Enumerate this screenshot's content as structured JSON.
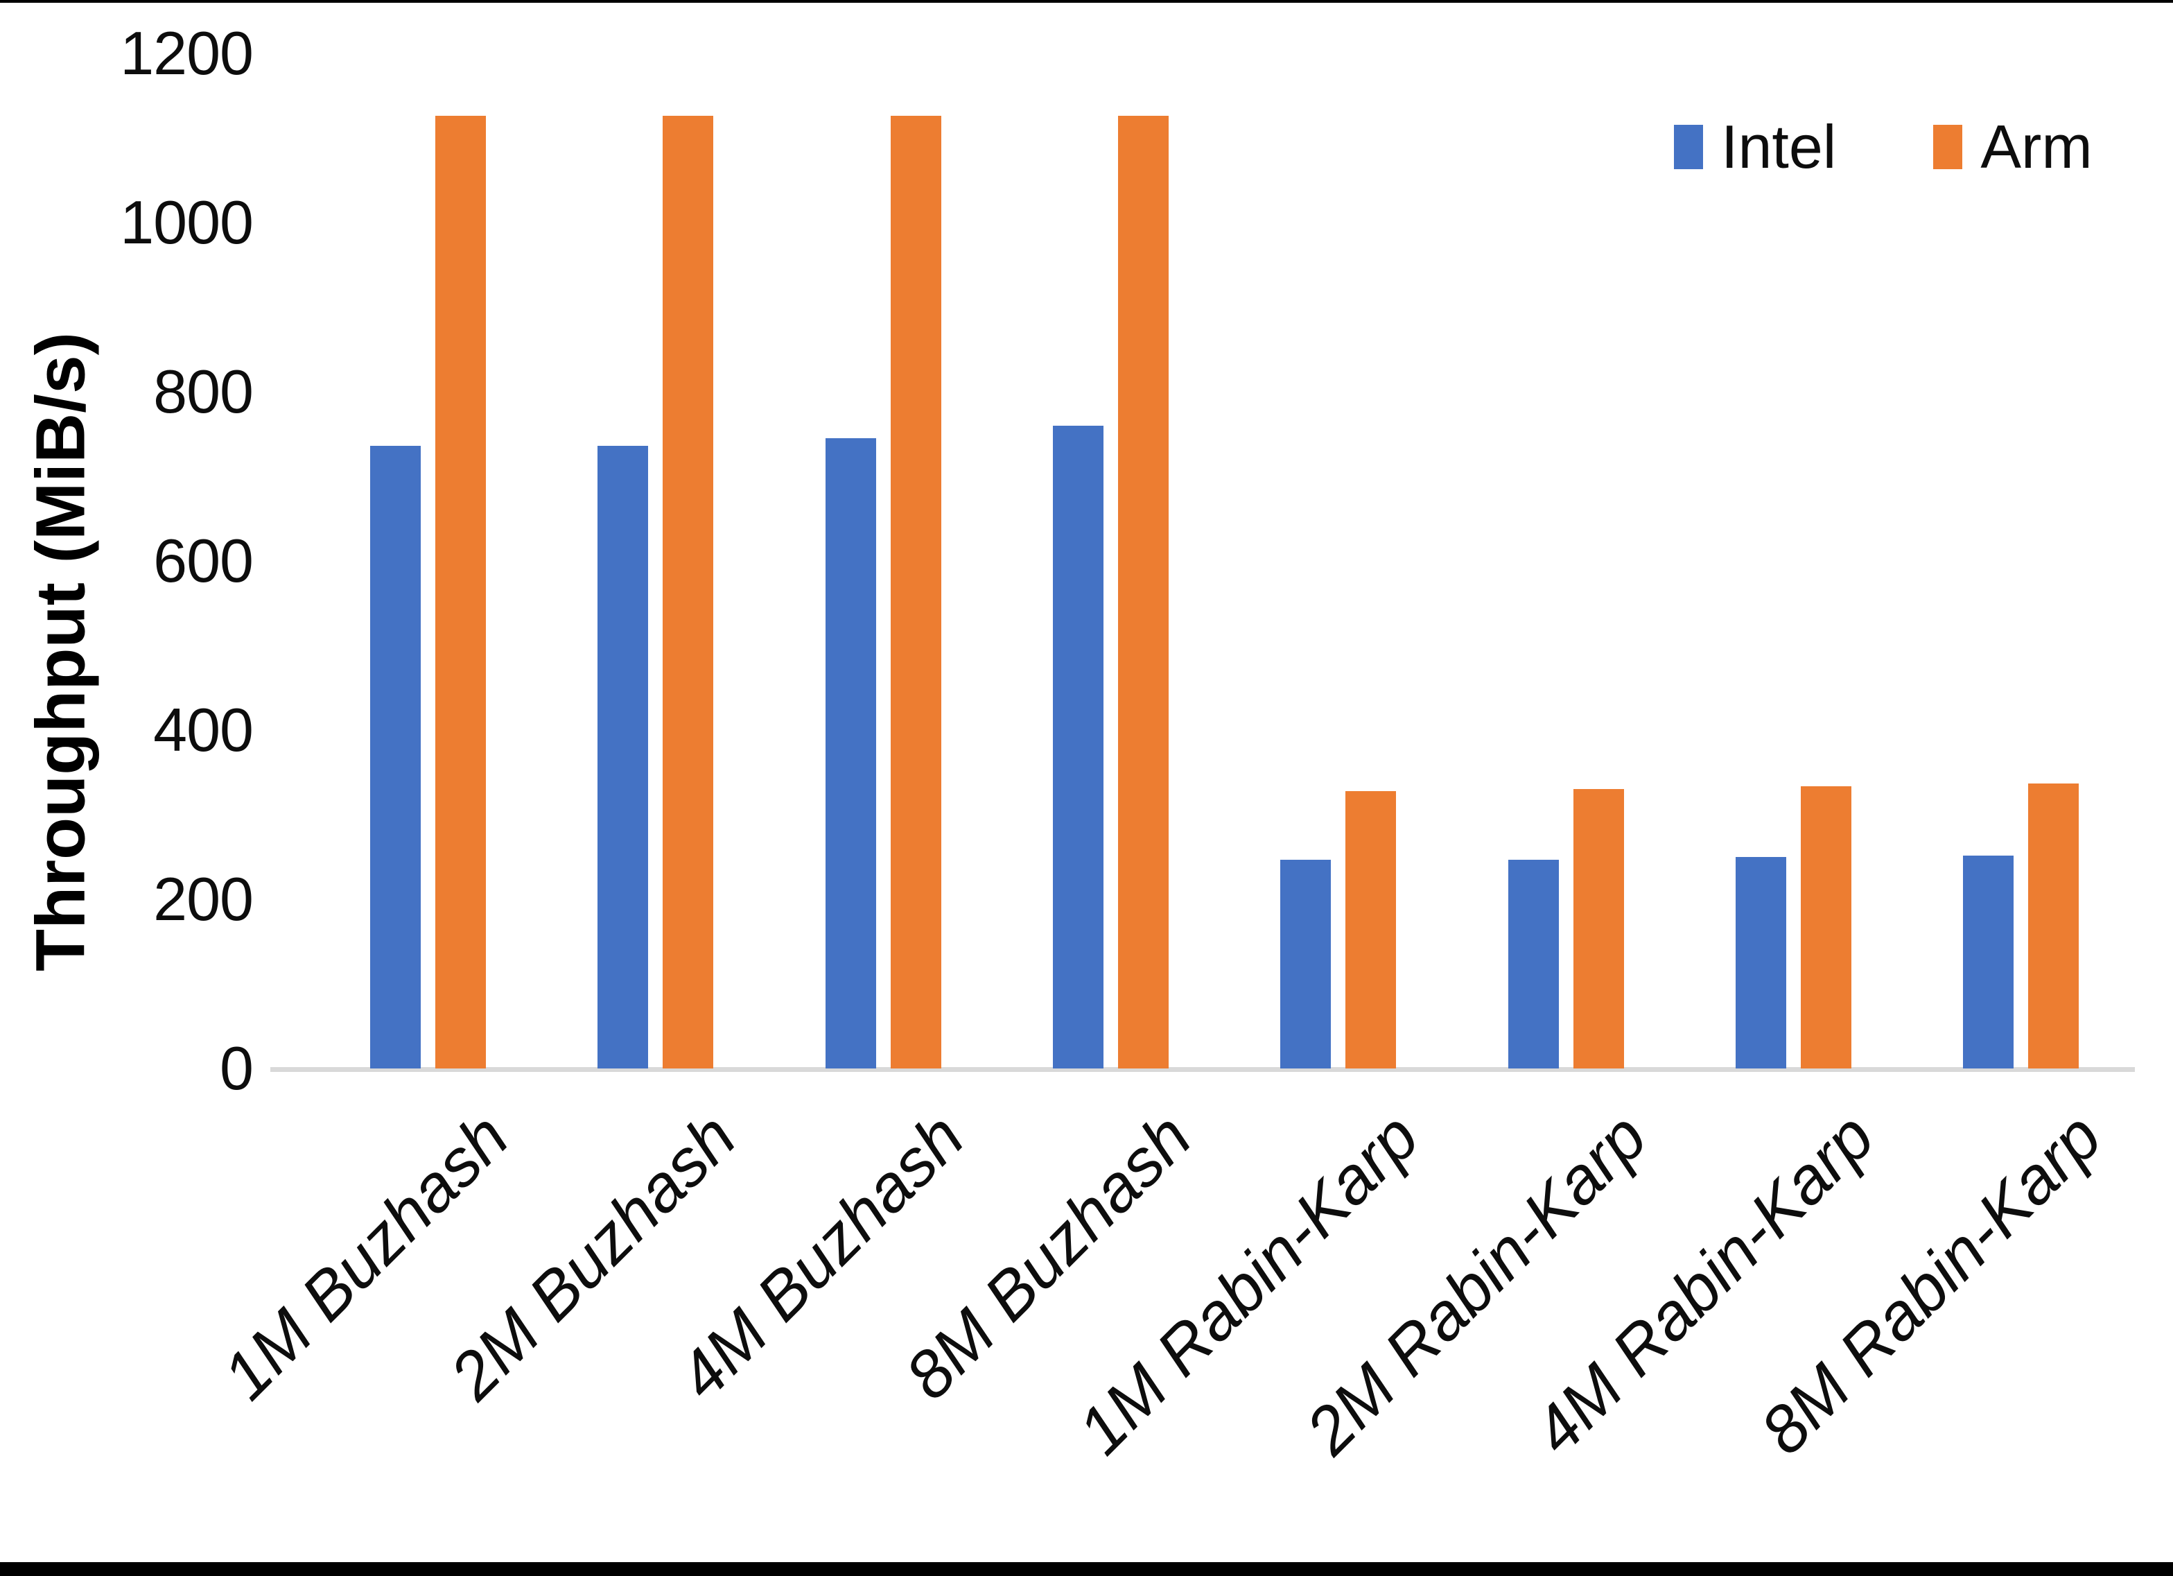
{
  "chart_data": {
    "type": "bar",
    "title": "",
    "xlabel": "",
    "ylabel": "Throughput (MiB/s)",
    "ylim": [
      0,
      1200
    ],
    "ytick_step": 200,
    "ytick_labels": [
      "0",
      "200",
      "400",
      "600",
      "800",
      "1000",
      "1200"
    ],
    "grid": false,
    "legend_position": "top-right",
    "categories": [
      "1M Buzhash",
      "2M Buzhash",
      "4M Buzhash",
      "8M Buzhash",
      "1M Rabin-Karp",
      "2M Rabin-Karp",
      "4M Rabin-Karp",
      "8M Rabin-Karp"
    ],
    "series": [
      {
        "name": "Intel",
        "color": "#4472C4",
        "values": [
          736,
          736,
          745,
          760,
          247,
          247,
          250,
          252
        ]
      },
      {
        "name": "Arm",
        "color": "#ED7D31",
        "values": [
          1126,
          1126,
          1126,
          1126,
          328,
          330,
          334,
          337
        ]
      }
    ]
  },
  "frame": {
    "background": "#ffffff",
    "border_color": "#000000",
    "axis_line_color": "#d9d9d9",
    "text_color": "#0d0d0d"
  }
}
